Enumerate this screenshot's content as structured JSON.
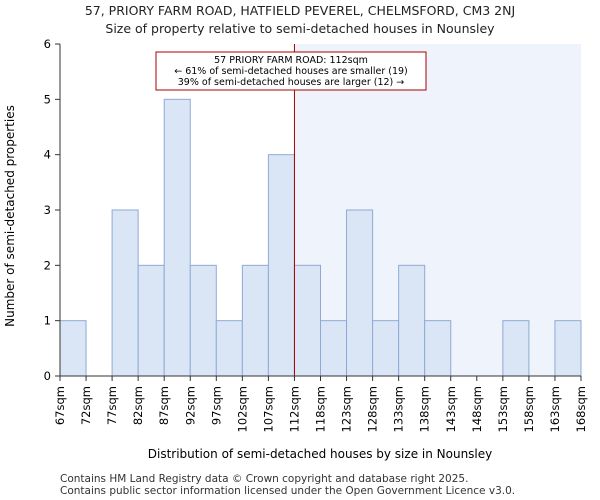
{
  "header": {
    "title_line1": "57, PRIORY FARM ROAD, HATFIELD PEVEREL, CHELMSFORD, CM3 2NJ",
    "title_line2": "Size of property relative to semi-detached houses in Nounsley"
  },
  "footer": {
    "line1": "Contains HM Land Registry data © Crown copyright and database right 2025.",
    "line2": "Contains public sector information licensed under the Open Government Licence v3.0."
  },
  "chart_data": {
    "type": "bar",
    "xlabel": "Distribution of semi-detached houses by size in Nounsley",
    "ylabel": "Number of semi-detached properties",
    "ylim": [
      0,
      6
    ],
    "yticks": [
      0,
      1,
      2,
      3,
      4,
      5,
      6
    ],
    "bin_edges": [
      67,
      72,
      77,
      82,
      87,
      92,
      97,
      102,
      107,
      112,
      118,
      123,
      128,
      133,
      138,
      143,
      148,
      153,
      158,
      163,
      168
    ],
    "x_tick_labels": [
      "67sqm",
      "72sqm",
      "77sqm",
      "82sqm",
      "87sqm",
      "92sqm",
      "97sqm",
      "102sqm",
      "107sqm",
      "112sqm",
      "118sqm",
      "123sqm",
      "128sqm",
      "133sqm",
      "138sqm",
      "143sqm",
      "148sqm",
      "153sqm",
      "158sqm",
      "163sqm",
      "168sqm"
    ],
    "values": [
      1,
      0,
      3,
      2,
      5,
      2,
      1,
      2,
      4,
      2,
      1,
      3,
      1,
      2,
      1,
      0,
      0,
      1,
      0,
      1
    ],
    "subject_value": 112,
    "annotation": {
      "line1": "57 PRIORY FARM ROAD: 112sqm",
      "line2": "← 61% of semi-detached houses are smaller (19)",
      "line3": "39% of semi-detached houses are larger (12) →"
    },
    "colors": {
      "bar_fill": "#dae6f6",
      "bar_stroke": "#8eaad4",
      "highlight_region": "#eef3fc",
      "marker_line": "#aa0000",
      "annotation_border": "#aa0000"
    }
  }
}
